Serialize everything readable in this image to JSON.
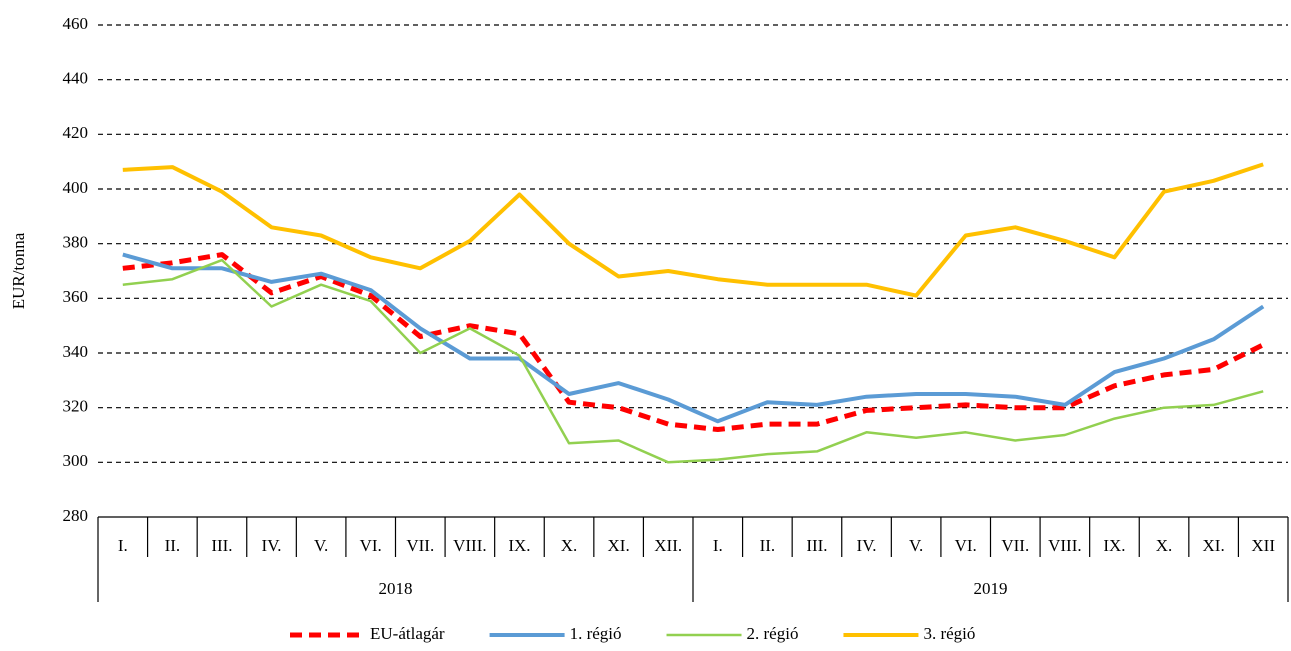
{
  "chart_data": {
    "type": "line",
    "y_label": "EUR/tonna",
    "categories": [
      "I.",
      "II.",
      "III.",
      "IV.",
      "V.",
      "VI.",
      "VII.",
      "VIII.",
      "IX.",
      "X.",
      "XI.",
      "XII.",
      "I.",
      "II.",
      "III.",
      "IV.",
      "V.",
      "VI.",
      "VII.",
      "VIII.",
      "IX.",
      "X.",
      "XI.",
      "XII"
    ],
    "category_groups": [
      "2018",
      "2019"
    ],
    "series": [
      {
        "name": "EU-átlagár",
        "color": "#ff0000",
        "dashed": true,
        "width": 5,
        "values": [
          371,
          373,
          376,
          362,
          368,
          361,
          346,
          350,
          347,
          322,
          320,
          314,
          312,
          314,
          314,
          319,
          320,
          321,
          320,
          320,
          328,
          332,
          334,
          343
        ]
      },
      {
        "name": "1. régió",
        "color": "#5b9bd5",
        "dashed": false,
        "width": 4,
        "values": [
          376,
          371,
          371,
          366,
          369,
          363,
          349,
          338,
          338,
          325,
          329,
          323,
          315,
          322,
          321,
          324,
          325,
          325,
          324,
          321,
          333,
          338,
          345,
          357
        ]
      },
      {
        "name": "2. régió",
        "color": "#92d050",
        "dashed": false,
        "width": 2.5,
        "values": [
          365,
          367,
          374,
          357,
          365,
          359,
          340,
          349,
          339,
          307,
          308,
          300,
          301,
          303,
          304,
          311,
          309,
          311,
          308,
          310,
          316,
          320,
          321,
          326
        ]
      },
      {
        "name": "3. régió",
        "color": "#ffc000",
        "dashed": false,
        "width": 4,
        "values": [
          407,
          408,
          399,
          386,
          383,
          375,
          371,
          381,
          398,
          380,
          368,
          370,
          367,
          365,
          365,
          365,
          361,
          383,
          386,
          381,
          375,
          399,
          403,
          409
        ]
      }
    ],
    "ylim": [
      280,
      460
    ],
    "yticks": [
      280,
      300,
      320,
      340,
      360,
      380,
      400,
      420,
      440,
      460
    ],
    "grid": true,
    "legend": "bottom"
  }
}
